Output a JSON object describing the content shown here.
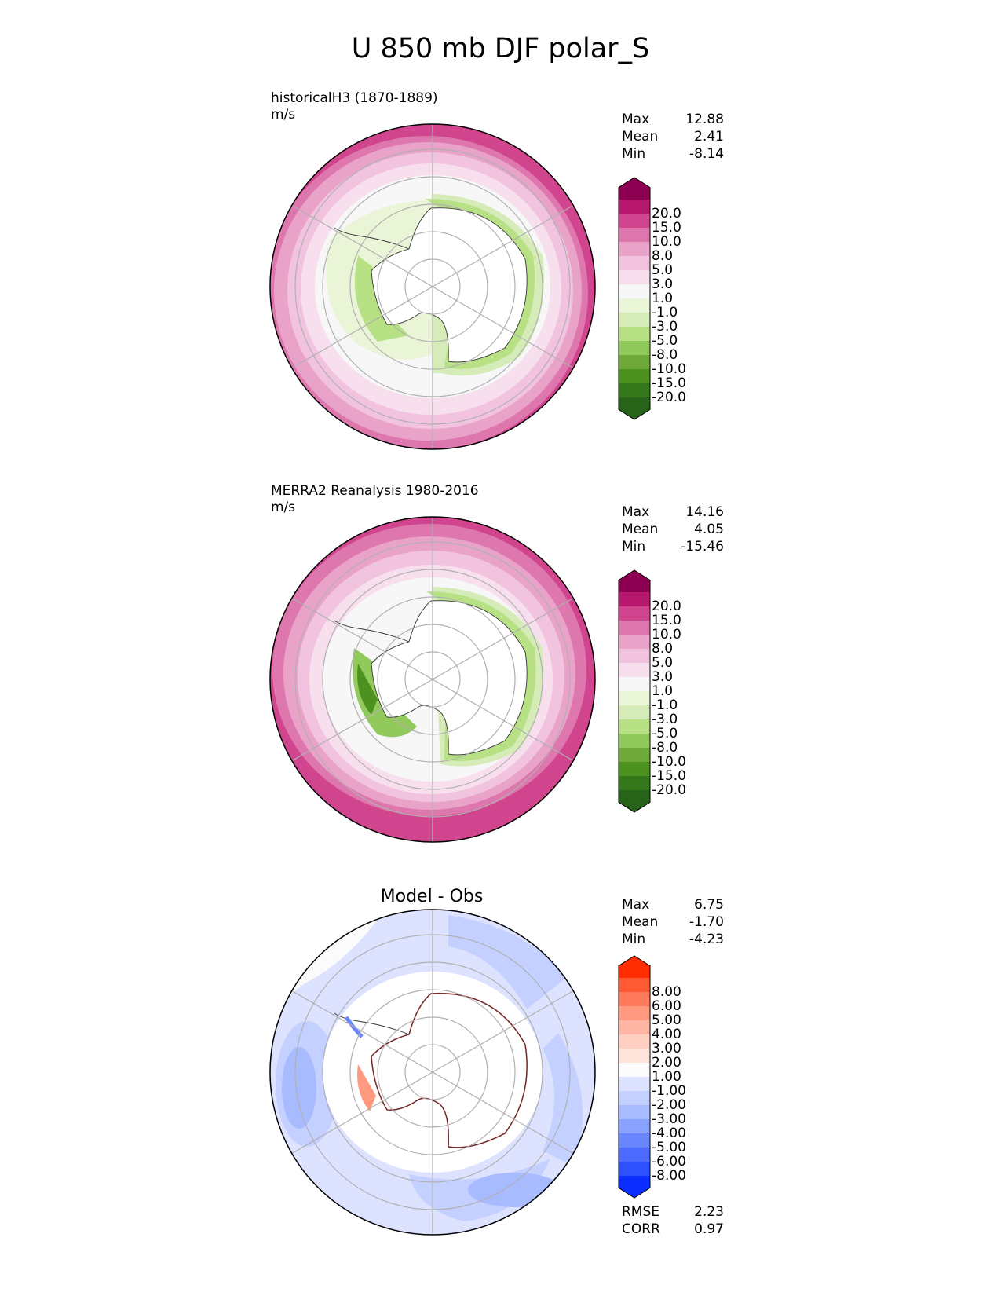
{
  "title": "U 850 mb DJF polar_S",
  "panels": [
    {
      "title_line1": "historicalH3 (1870-1889)",
      "title_line2": "m/s",
      "stats": {
        "max_label": "Max",
        "max": "12.88",
        "mean_label": "Mean",
        "mean": "2.41",
        "min_label": "Min",
        "min": "-8.14"
      }
    },
    {
      "title_line1": "MERRA2 Reanalysis 1980-2016",
      "title_line2": "m/s",
      "stats": {
        "max_label": "Max",
        "max": "14.16",
        "mean_label": "Mean",
        "mean": "4.05",
        "min_label": "Min",
        "min": "-15.46"
      }
    },
    {
      "title": "Model - Obs",
      "stats": {
        "max_label": "Max",
        "max": "6.75",
        "mean_label": "Mean",
        "mean": "-1.70",
        "min_label": "Min",
        "min": "-4.23"
      },
      "rmse_label": "RMSE",
      "rmse": "2.23",
      "corr_label": "CORR",
      "corr": "0.97"
    }
  ],
  "colorbar_field": {
    "ticks": [
      "20.0",
      "15.0",
      "10.0",
      "8.0",
      "5.0",
      "3.0",
      "1.0",
      "-1.0",
      "-3.0",
      "-5.0",
      "-8.0",
      "-10.0",
      "-15.0",
      "-20.0"
    ],
    "colors": [
      "#8e0152",
      "#b8196e",
      "#d0458e",
      "#de77ae",
      "#e9a3c9",
      "#f1c3de",
      "#f8dfee",
      "#f7f7f7",
      "#eaf5d8",
      "#d6ecb8",
      "#b8e186",
      "#92c95d",
      "#6ea93a",
      "#4d9221",
      "#35781c",
      "#276419"
    ]
  },
  "colorbar_diff": {
    "ticks": [
      "8.00",
      "6.00",
      "5.00",
      "4.00",
      "3.00",
      "2.00",
      "1.00",
      "-1.00",
      "-2.00",
      "-3.00",
      "-4.00",
      "-5.00",
      "-6.00",
      "-8.00"
    ],
    "colors": [
      "#ff2d00",
      "#ff5a33",
      "#ff7a5a",
      "#ff9a80",
      "#ffb6a4",
      "#ffcfc2",
      "#ffe4dc",
      "#fbfbfb",
      "#dde3ff",
      "#c4d0ff",
      "#a9bbff",
      "#8aa2ff",
      "#6a86ff",
      "#4d6bff",
      "#2f50ff",
      "#0b2dff"
    ]
  }
}
